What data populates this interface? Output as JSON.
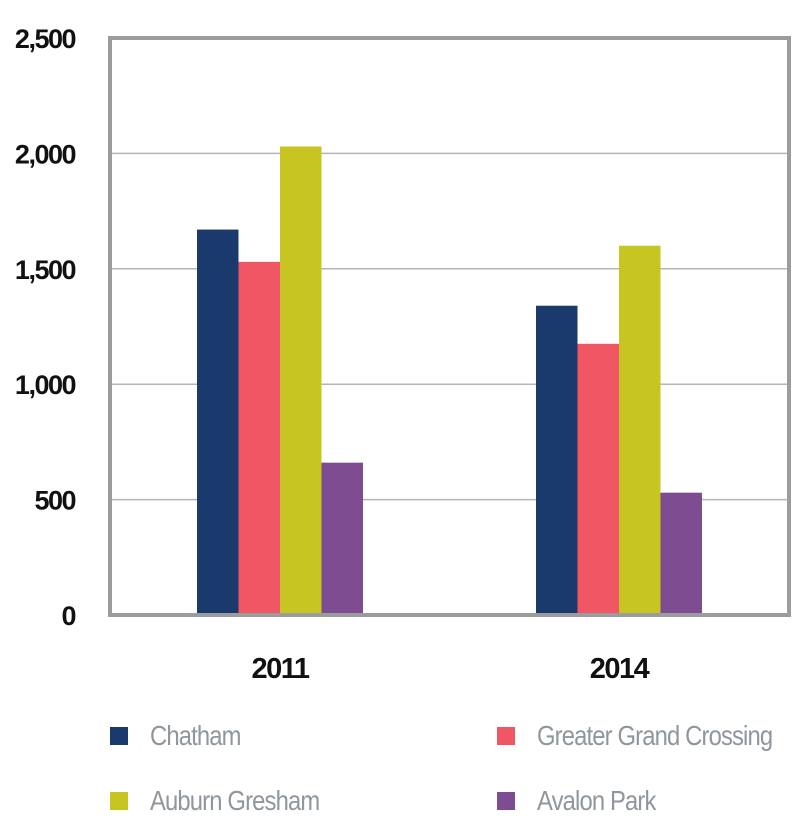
{
  "chart_data": {
    "type": "bar",
    "title": "",
    "xlabel": "",
    "ylabel": "",
    "categories": [
      "2011",
      "2014"
    ],
    "series": [
      {
        "name": "Chatham",
        "color": "#1a3a6e",
        "values": [
          1670,
          1340
        ]
      },
      {
        "name": "Greater Grand Crossing",
        "color": "#f05664",
        "values": [
          1530,
          1175
        ]
      },
      {
        "name": "Auburn Gresham",
        "color": "#c6c521",
        "values": [
          2030,
          1600
        ]
      },
      {
        "name": "Avalon Park",
        "color": "#7e4c91",
        "values": [
          660,
          530
        ]
      }
    ],
    "ylim": [
      0,
      2500
    ],
    "yticks": [
      0,
      500,
      1000,
      1500,
      2000,
      2500
    ],
    "ytick_labels": [
      "0",
      "500",
      "1,000",
      "1,500",
      "2,000",
      "2,500"
    ],
    "grid": true,
    "legend_position": "bottom",
    "colors": {
      "frame": "#9b9c9e",
      "grid": "#b5b5b5",
      "tick_text": "#111111",
      "legend_text": "#8f969c"
    }
  },
  "legend": {
    "items": [
      {
        "label": "Chatham",
        "color": "#1a3a6e"
      },
      {
        "label": "Greater Grand Crossing",
        "color": "#f05664"
      },
      {
        "label": "Auburn Gresham",
        "color": "#c6c521"
      },
      {
        "label": "Avalon Park",
        "color": "#7e4c91"
      }
    ]
  }
}
